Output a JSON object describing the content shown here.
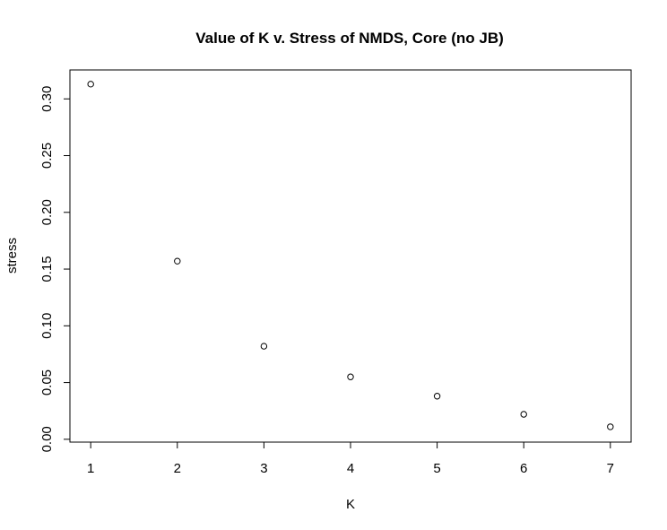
{
  "chart_data": {
    "type": "scatter",
    "title": "Value of K v. Stress of NMDS, Core (no JB)",
    "xlabel": "K",
    "ylabel": "stress",
    "x": [
      1,
      2,
      3,
      4,
      5,
      6,
      7
    ],
    "y": [
      0.313,
      0.157,
      0.082,
      0.055,
      0.038,
      0.022,
      0.011
    ],
    "xlim": [
      0.76,
      7.24
    ],
    "ylim": [
      -0.0025,
      0.3255
    ],
    "x_ticks": [
      1,
      2,
      3,
      4,
      5,
      6,
      7
    ],
    "x_tick_labels": [
      "1",
      "2",
      "3",
      "4",
      "5",
      "6",
      "7"
    ],
    "y_ticks": [
      0.0,
      0.05,
      0.1,
      0.15,
      0.2,
      0.25,
      0.3
    ],
    "y_tick_labels": [
      "0.00",
      "0.05",
      "0.10",
      "0.15",
      "0.20",
      "0.25",
      "0.30"
    ],
    "grid": false,
    "legend": "none",
    "marker": "open-circle",
    "colors": {
      "points": "#000000",
      "axes": "#000000",
      "background": "#ffffff"
    }
  }
}
